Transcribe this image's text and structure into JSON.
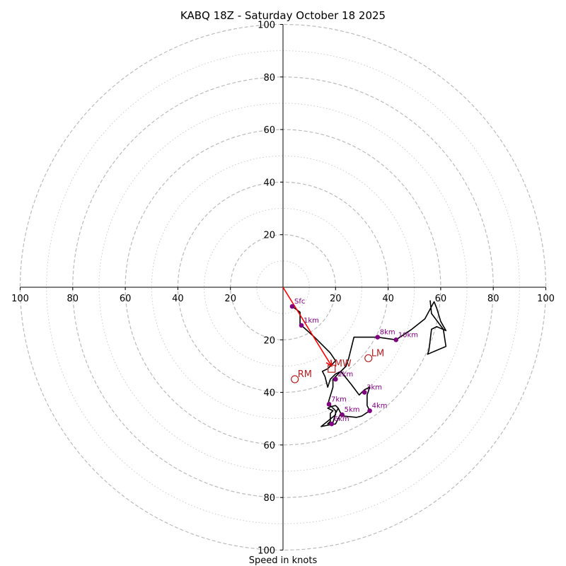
{
  "chart_data": {
    "type": "hodograph",
    "title": "KABQ 18Z - Saturday October 18 2025",
    "xlabel": "Speed in knots",
    "range": [
      -100,
      100
    ],
    "ring_major": [
      20,
      40,
      60,
      80,
      100
    ],
    "ring_minor": [
      10,
      30,
      50,
      70,
      90
    ],
    "x_ticks": [
      {
        "value": -100,
        "label": "100"
      },
      {
        "value": -80,
        "label": "80"
      },
      {
        "value": -60,
        "label": "60"
      },
      {
        "value": -40,
        "label": "40"
      },
      {
        "value": -20,
        "label": "20"
      },
      {
        "value": 20,
        "label": "20"
      },
      {
        "value": 40,
        "label": "40"
      },
      {
        "value": 60,
        "label": "60"
      },
      {
        "value": 80,
        "label": "80"
      },
      {
        "value": 100,
        "label": "100"
      }
    ],
    "y_ticks": [
      {
        "value": 100,
        "label": "100"
      },
      {
        "value": 80,
        "label": "80"
      },
      {
        "value": 60,
        "label": "60"
      },
      {
        "value": 40,
        "label": "40"
      },
      {
        "value": 20,
        "label": "20"
      },
      {
        "value": -20,
        "label": "20"
      },
      {
        "value": -40,
        "label": "40"
      },
      {
        "value": -60,
        "label": "60"
      },
      {
        "value": -80,
        "label": "80"
      },
      {
        "value": -100,
        "label": "100"
      }
    ],
    "trace": [
      [
        3.5,
        -7.3
      ],
      [
        6.5,
        -9.5
      ],
      [
        6.5,
        -14
      ],
      [
        7,
        -14.5
      ],
      [
        12,
        -19
      ],
      [
        18,
        -25
      ],
      [
        20,
        -28
      ],
      [
        17,
        -31
      ],
      [
        15,
        -32
      ],
      [
        16,
        -34
      ],
      [
        17,
        -38
      ],
      [
        18,
        -35
      ],
      [
        20,
        -33
      ],
      [
        22,
        -32
      ],
      [
        26,
        -37
      ],
      [
        29,
        -41
      ],
      [
        30,
        -40
      ],
      [
        31,
        -39
      ],
      [
        33,
        -38
      ],
      [
        32,
        -41
      ],
      [
        32,
        -45
      ],
      [
        33,
        -47
      ],
      [
        30,
        -49
      ],
      [
        28,
        -49.5
      ],
      [
        23,
        -49
      ],
      [
        22,
        -48
      ],
      [
        21,
        -46
      ],
      [
        20,
        -45
      ],
      [
        18,
        -45.5
      ],
      [
        17,
        -46
      ],
      [
        19,
        -47
      ],
      [
        18,
        -48
      ],
      [
        18,
        -51
      ],
      [
        17,
        -52
      ],
      [
        19,
        -51.5
      ],
      [
        20,
        -48
      ],
      [
        21,
        -46
      ],
      [
        22,
        -48
      ],
      [
        20,
        -52
      ],
      [
        17,
        -52.5
      ],
      [
        14.5,
        -53
      ],
      [
        20,
        -48.5
      ],
      [
        20,
        -47
      ],
      [
        18,
        -45
      ],
      [
        17,
        -45
      ],
      [
        17.5,
        -43
      ],
      [
        19,
        -38
      ],
      [
        19,
        -35
      ],
      [
        20,
        -34
      ],
      [
        22,
        -32
      ],
      [
        24,
        -30
      ],
      [
        25,
        -27
      ],
      [
        27,
        -19
      ],
      [
        36,
        -19
      ],
      [
        43,
        -20
      ],
      [
        49,
        -16
      ],
      [
        54,
        -12
      ],
      [
        57.5,
        -5.5
      ],
      [
        58.5,
        -8
      ],
      [
        60,
        -13
      ],
      [
        62,
        -16.5
      ],
      [
        58.5,
        -15
      ],
      [
        56.5,
        -16
      ],
      [
        55.5,
        -24
      ],
      [
        55,
        -25.5
      ],
      [
        62,
        -22.5
      ],
      [
        61,
        -16
      ],
      [
        56.5,
        -10
      ],
      [
        56,
        -5
      ]
    ],
    "height_markers": [
      {
        "label": "Sfc",
        "u": 3.5,
        "v": -7.3
      },
      {
        "label": "1km",
        "u": 7,
        "v": -14.5
      },
      {
        "label": "2km",
        "u": 20,
        "v": -35
      },
      {
        "label": "3km",
        "u": 31,
        "v": -40
      },
      {
        "label": "4km",
        "u": 33,
        "v": -47
      },
      {
        "label": "5km",
        "u": 22.5,
        "v": -48.5
      },
      {
        "label": "6km",
        "u": 18.5,
        "v": -52
      },
      {
        "label": "7km",
        "u": 17.5,
        "v": -44.5
      },
      {
        "label": "8km",
        "u": 36,
        "v": -19
      },
      {
        "label": "10km",
        "u": 43,
        "v": -20
      }
    ],
    "storm_motions": [
      {
        "label": "MW",
        "u": 18.5,
        "v": -31,
        "shape": "square"
      },
      {
        "label": "LM",
        "u": 32.5,
        "v": -27,
        "shape": "circle"
      },
      {
        "label": "RM",
        "u": 4.5,
        "v": -35,
        "shape": "circle"
      }
    ],
    "arrow": {
      "from_u": 0,
      "from_v": 0,
      "to_u": 18.5,
      "to_v": -30
    },
    "colors": {
      "trace": "#000000",
      "markers": "#800080",
      "storm_motion": "#b22222",
      "arrow": "#ff0000",
      "ring_major": "#bbbbbb",
      "ring_minor": "#cccccc"
    }
  }
}
